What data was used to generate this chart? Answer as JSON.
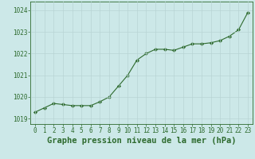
{
  "x": [
    0,
    1,
    2,
    3,
    4,
    5,
    6,
    7,
    8,
    9,
    10,
    11,
    12,
    13,
    14,
    15,
    16,
    17,
    18,
    19,
    20,
    21,
    22,
    23
  ],
  "y": [
    1019.3,
    1019.5,
    1019.7,
    1019.65,
    1019.6,
    1019.6,
    1019.6,
    1019.78,
    1020.0,
    1020.5,
    1021.0,
    1021.7,
    1022.0,
    1022.2,
    1022.2,
    1022.15,
    1022.3,
    1022.45,
    1022.45,
    1022.5,
    1022.6,
    1022.8,
    1023.1,
    1023.9
  ],
  "line_color": "#2d6a2d",
  "marker_color": "#2d6a2d",
  "bg_color": "#cce8e8",
  "grid_color": "#b8d4d4",
  "xlabel": "Graphe pression niveau de la mer (hPa)",
  "xlabel_color": "#2d6a2d",
  "ylabel_ticks": [
    1019,
    1020,
    1021,
    1022,
    1023,
    1024
  ],
  "xtick_labels": [
    "0",
    "1",
    "2",
    "3",
    "4",
    "5",
    "6",
    "7",
    "8",
    "9",
    "10",
    "11",
    "12",
    "13",
    "14",
    "15",
    "16",
    "17",
    "18",
    "19",
    "20",
    "21",
    "22",
    "23"
  ],
  "ylim": [
    1018.75,
    1024.4
  ],
  "xlim": [
    -0.5,
    23.5
  ],
  "tick_color": "#2d6a2d",
  "tick_fontsize": 5.5,
  "xlabel_fontsize": 7.5,
  "border_color": "#2d6a2d"
}
